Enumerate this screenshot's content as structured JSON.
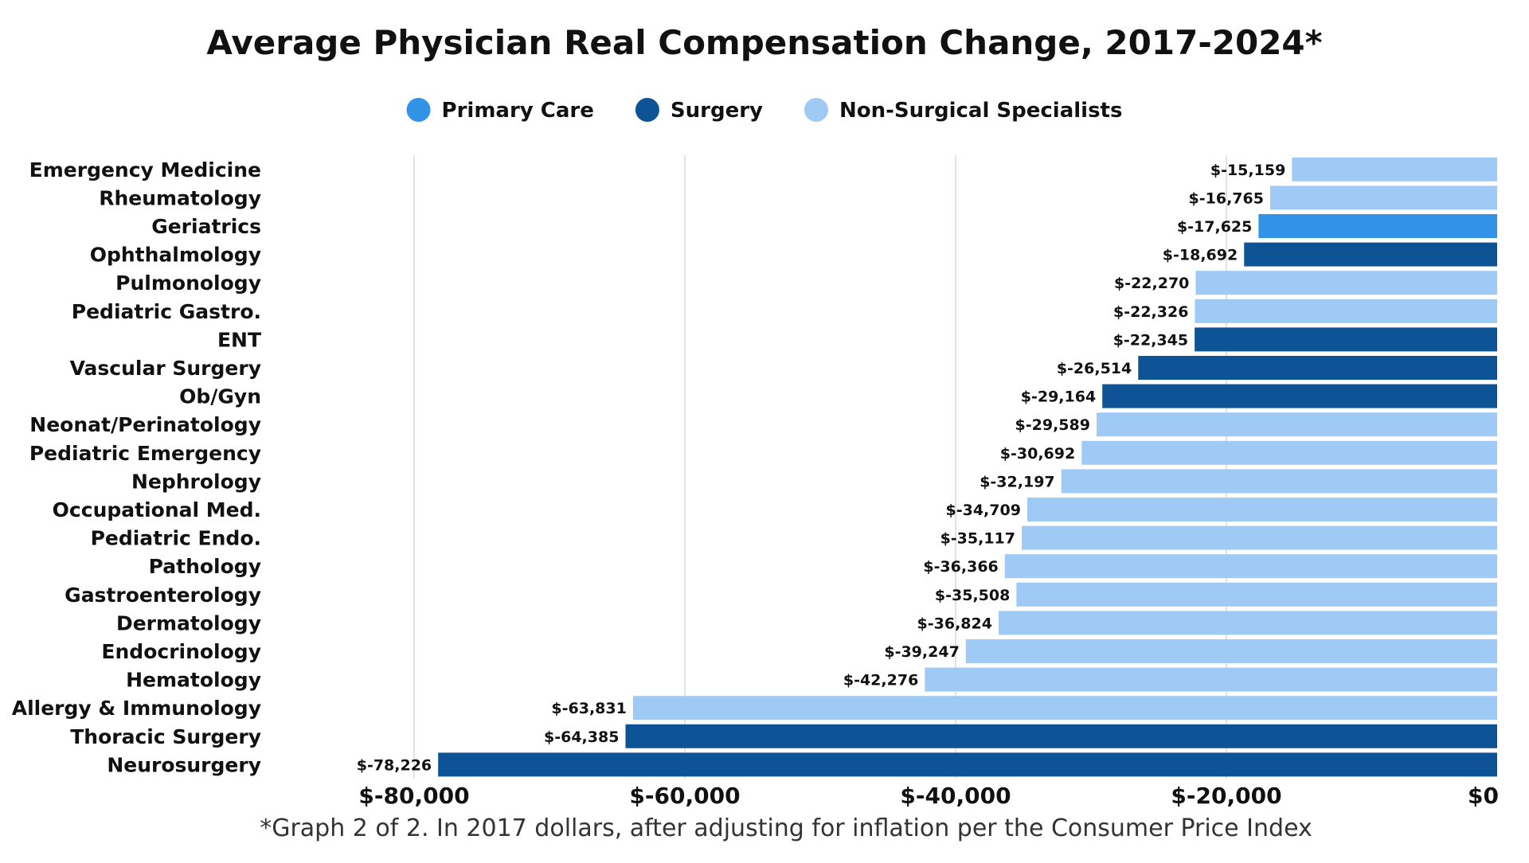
{
  "colors": {
    "primary_care": "#3292e6",
    "surgery": "#0e5395",
    "non_surgical": "#9fcaf5",
    "grid": "#d9d9d9",
    "text": "#111111",
    "footnote_text": "#333333"
  },
  "chart_data": {
    "type": "bar",
    "orientation": "horizontal",
    "title": "Average Physician Real Compensation Change, 2017-2024*",
    "footnote": "*Graph 2 of 2. In 2017 dollars, after adjusting for inflation per the Consumer Price Index",
    "xlabel": "",
    "ylabel": "",
    "xlim": [
      -80000,
      0
    ],
    "x_ticks": [
      -80000,
      -60000,
      -40000,
      -20000,
      0
    ],
    "x_tick_labels": [
      "$-80,000",
      "$-60,000",
      "$-40,000",
      "$-20,000",
      "$0"
    ],
    "grid": "vertical",
    "legend_position": "top-center",
    "legend": [
      {
        "name": "Primary Care",
        "group": "primary_care"
      },
      {
        "name": "Surgery",
        "group": "surgery"
      },
      {
        "name": "Non-Surgical Specialists",
        "group": "non_surgical"
      }
    ],
    "bars": [
      {
        "category": "Emergency Medicine",
        "value": -15159,
        "label": "$-15,159",
        "group": "non_surgical"
      },
      {
        "category": "Rheumatology",
        "value": -16765,
        "label": "$-16,765",
        "group": "non_surgical"
      },
      {
        "category": "Geriatrics",
        "value": -17625,
        "label": "$-17,625",
        "group": "primary_care"
      },
      {
        "category": "Ophthalmology",
        "value": -18692,
        "label": "$-18,692",
        "group": "surgery"
      },
      {
        "category": "Pulmonology",
        "value": -22270,
        "label": "$-22,270",
        "group": "non_surgical"
      },
      {
        "category": "Pediatric Gastro.",
        "value": -22326,
        "label": "$-22,326",
        "group": "non_surgical"
      },
      {
        "category": "ENT",
        "value": -22345,
        "label": "$-22,345",
        "group": "surgery"
      },
      {
        "category": "Vascular Surgery",
        "value": -26514,
        "label": "$-26,514",
        "group": "surgery"
      },
      {
        "category": "Ob/Gyn",
        "value": -29164,
        "label": "$-29,164",
        "group": "surgery"
      },
      {
        "category": "Neonat/Perinatology",
        "value": -29589,
        "label": "$-29,589",
        "group": "non_surgical"
      },
      {
        "category": "Pediatric Emergency",
        "value": -30692,
        "label": "$-30,692",
        "group": "non_surgical"
      },
      {
        "category": "Nephrology",
        "value": -32197,
        "label": "$-32,197",
        "group": "non_surgical"
      },
      {
        "category": "Occupational Med.",
        "value": -34709,
        "label": "$-34,709",
        "group": "non_surgical"
      },
      {
        "category": "Pediatric Endo.",
        "value": -35117,
        "label": "$-35,117",
        "group": "non_surgical"
      },
      {
        "category": "Pathology",
        "value": -36366,
        "label": "$-36,366",
        "group": "non_surgical"
      },
      {
        "category": "Gastroenterology",
        "value": -35508,
        "label": "$-35,508",
        "group": "non_surgical"
      },
      {
        "category": "Dermatology",
        "value": -36824,
        "label": "$-36,824",
        "group": "non_surgical"
      },
      {
        "category": "Endocrinology",
        "value": -39247,
        "label": "$-39,247",
        "group": "non_surgical"
      },
      {
        "category": "Hematology",
        "value": -42276,
        "label": "$-42,276",
        "group": "non_surgical"
      },
      {
        "category": "Allergy & Immunology",
        "value": -63831,
        "label": "$-63,831",
        "group": "non_surgical"
      },
      {
        "category": "Thoracic Surgery",
        "value": -64385,
        "label": "$-64,385",
        "group": "surgery"
      },
      {
        "category": "Neurosurgery",
        "value": -78226,
        "label": "$-78,226",
        "group": "surgery"
      }
    ]
  }
}
